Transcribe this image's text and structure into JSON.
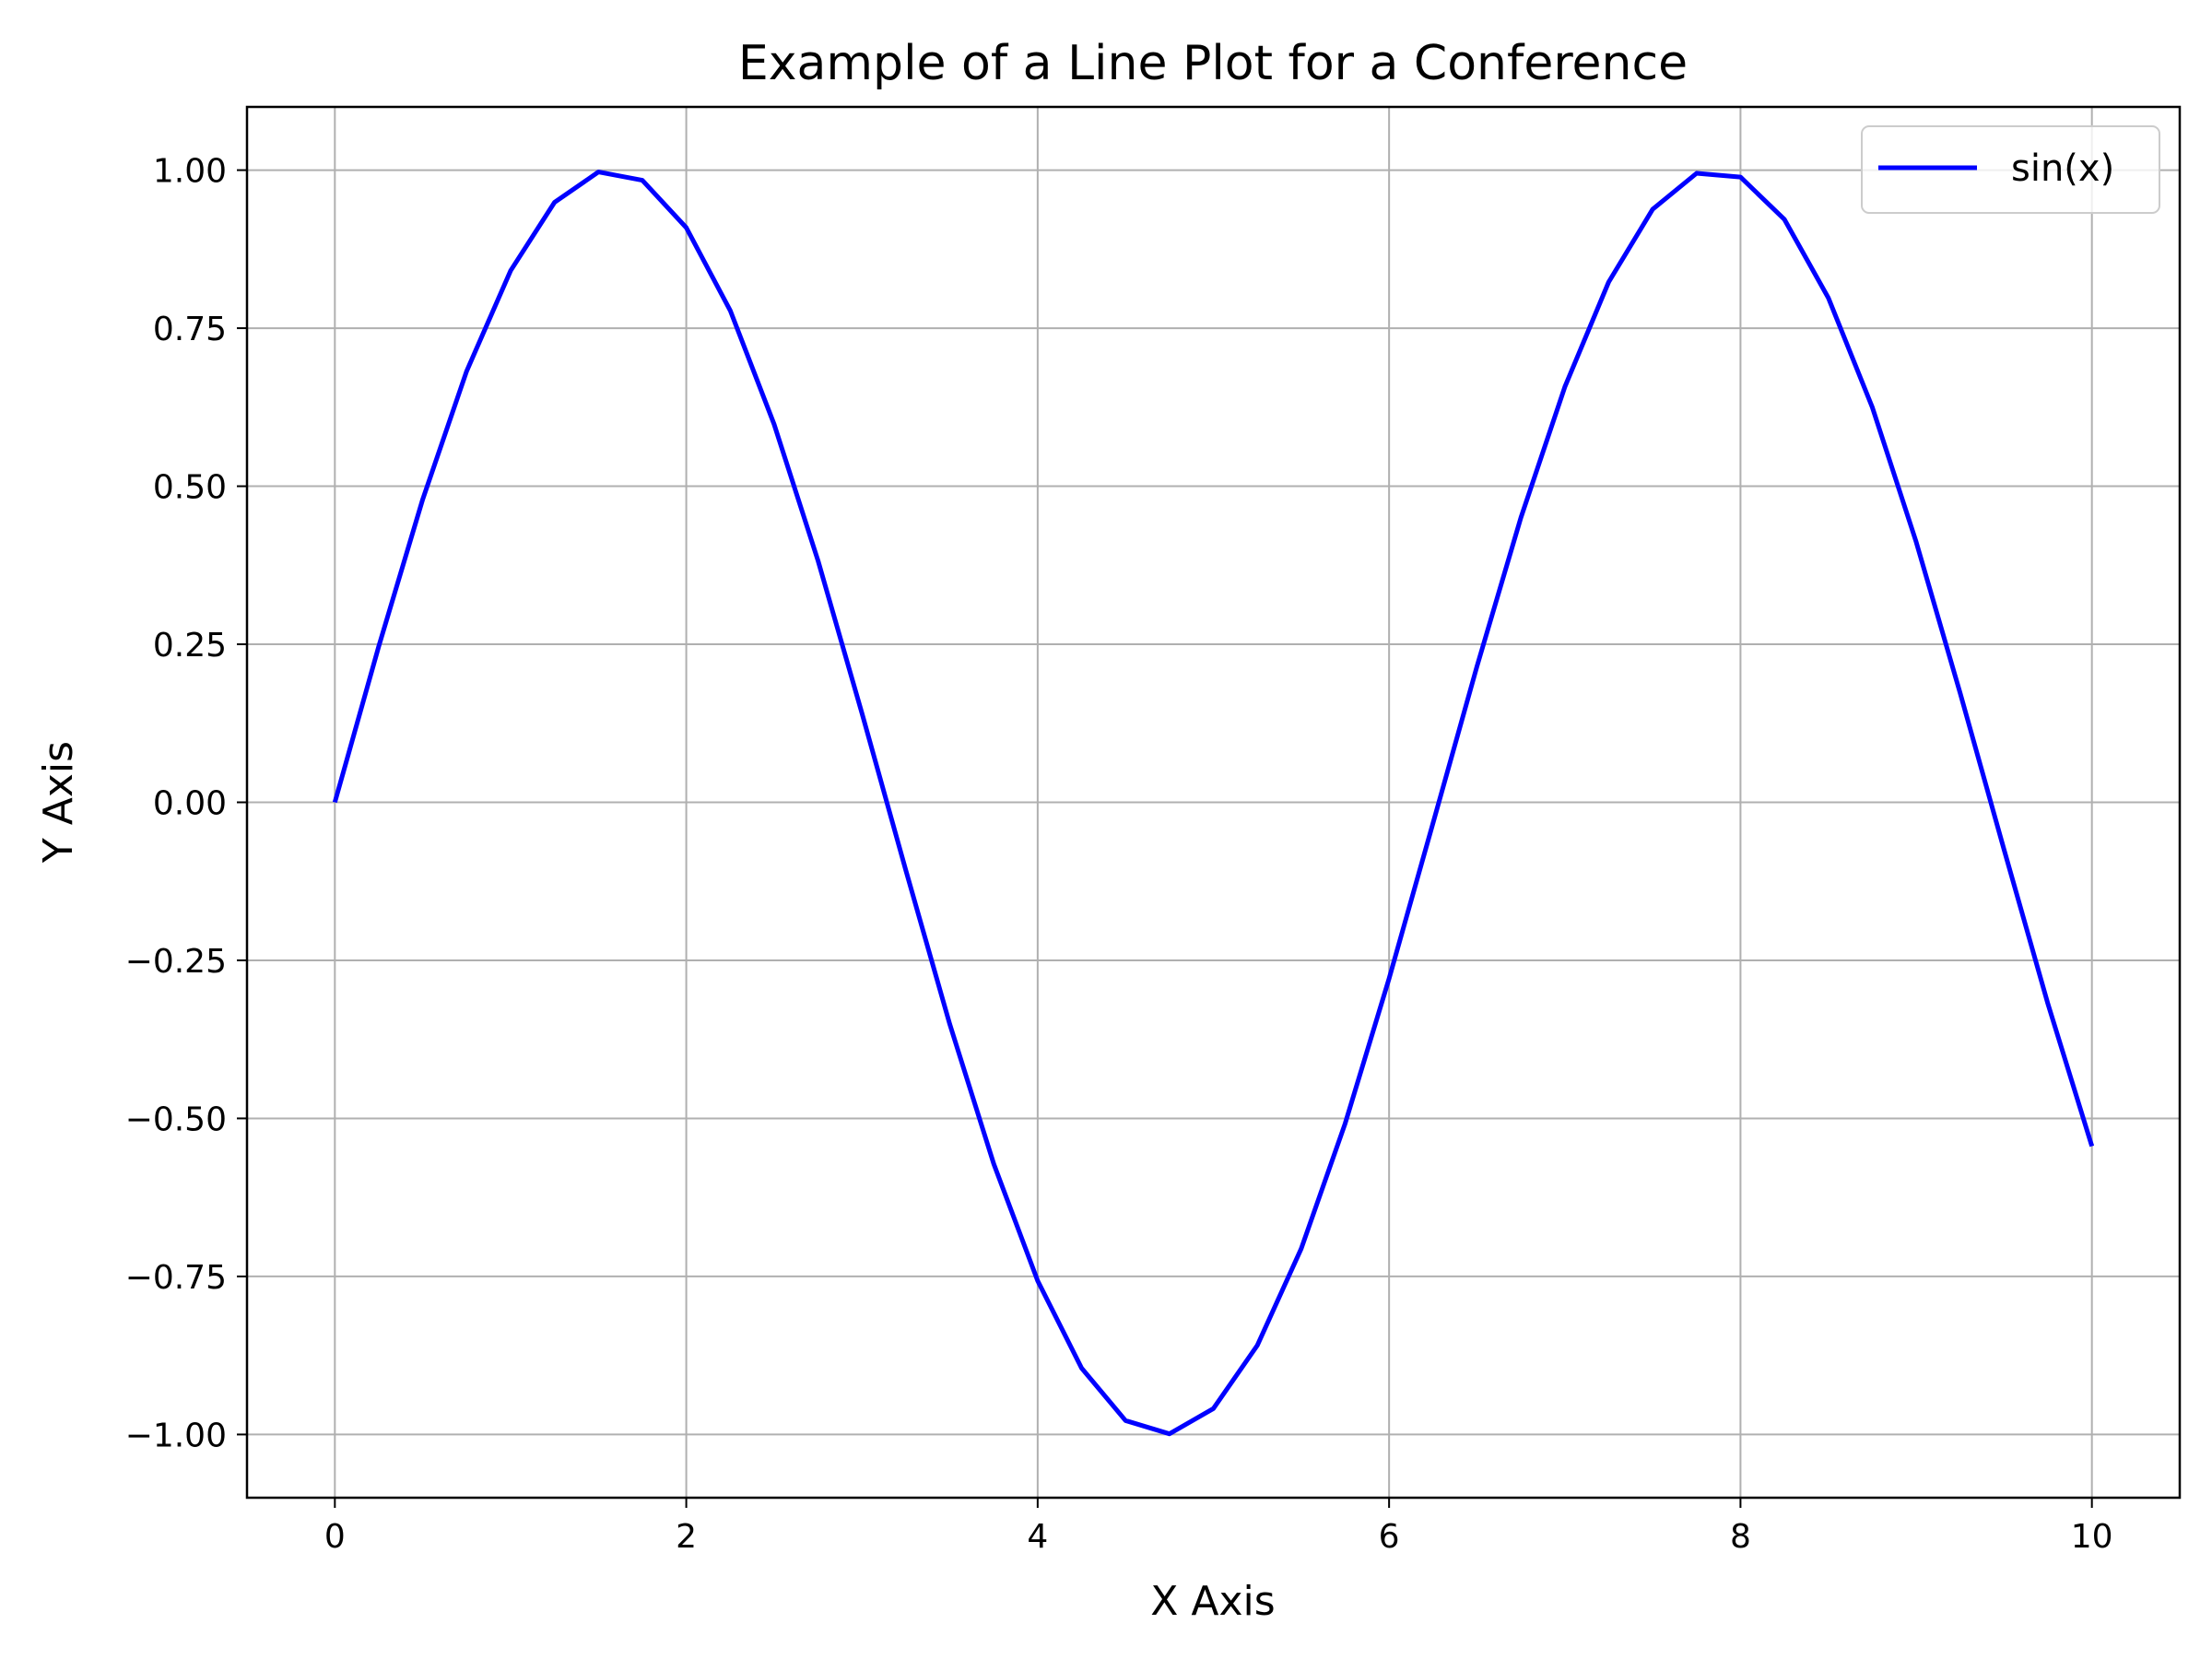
{
  "chart_data": {
    "type": "line",
    "title": "Example of a Line Plot for a Conference",
    "xlabel": "X Axis",
    "ylabel": "Y Axis",
    "xlim": [
      -0.5,
      10.5
    ],
    "ylim": [
      -1.1,
      1.1
    ],
    "x_ticks": [
      0,
      2,
      4,
      6,
      8,
      10
    ],
    "x_tick_labels": [
      "0",
      "2",
      "4",
      "6",
      "8",
      "10"
    ],
    "y_ticks": [
      1.0,
      0.75,
      0.5,
      0.25,
      0.0,
      -0.25,
      -0.5,
      -0.75,
      -1.0
    ],
    "y_tick_labels": [
      "1.00",
      "0.75",
      "0.50",
      "0.25",
      "0.00",
      "−0.25",
      "−0.50",
      "−0.75",
      "−1.00"
    ],
    "grid": true,
    "legend_position": "top-right",
    "x": [
      0,
      0.25,
      0.5,
      0.75,
      1,
      1.25,
      1.5,
      1.75,
      2,
      2.25,
      2.5,
      2.75,
      3,
      3.25,
      3.5,
      3.75,
      4,
      4.25,
      4.5,
      4.75,
      5,
      5.25,
      5.5,
      5.75,
      6,
      6.25,
      6.5,
      6.75,
      7,
      7.25,
      7.5,
      7.75,
      8,
      8.25,
      8.5,
      8.75,
      9,
      9.25,
      9.5,
      9.75,
      10
    ],
    "series": [
      {
        "name": "sin(x)",
        "color": "#0000ff",
        "values": [
          0,
          0.247,
          0.479,
          0.682,
          0.841,
          0.949,
          0.997,
          0.984,
          0.909,
          0.778,
          0.598,
          0.382,
          0.141,
          -0.108,
          -0.351,
          -0.572,
          -0.757,
          -0.895,
          -0.978,
          -0.999,
          -0.959,
          -0.859,
          -0.706,
          -0.508,
          -0.279,
          -0.033,
          0.215,
          0.45,
          0.657,
          0.823,
          0.938,
          0.995,
          0.989,
          0.922,
          0.798,
          0.625,
          0.412,
          0.173,
          -0.075,
          -0.319,
          -0.544
        ]
      }
    ]
  }
}
